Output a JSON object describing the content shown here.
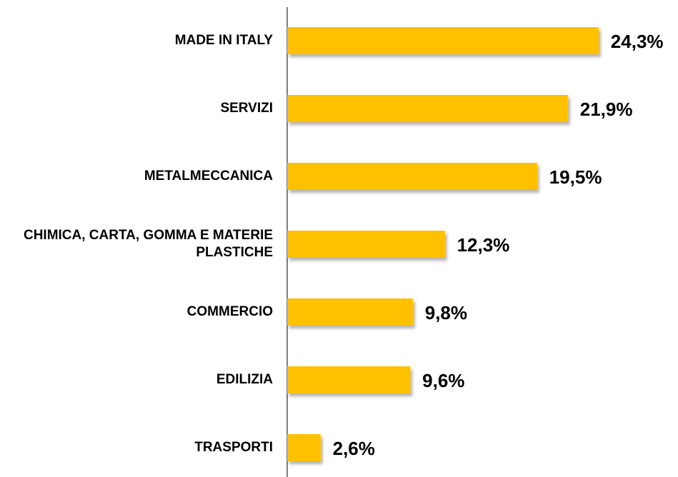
{
  "chart_data": {
    "type": "bar",
    "orientation": "horizontal",
    "categories": [
      "MADE IN ITALY",
      "SERVIZI",
      "METALMECCANICA",
      "CHIMICA, CARTA, GOMMA E MATERIE PLASTICHE",
      "COMMERCIO",
      "EDILIZIA",
      "TRASPORTI"
    ],
    "values": [
      24.3,
      21.9,
      19.5,
      12.3,
      9.8,
      9.6,
      2.6
    ],
    "value_labels": [
      "24,3%",
      "21,9%",
      "19,5%",
      "12,3%",
      "9,8%",
      "9,6%",
      "2,6%"
    ],
    "color": "#ffc000",
    "xlim": [
      0,
      30.5
    ]
  }
}
